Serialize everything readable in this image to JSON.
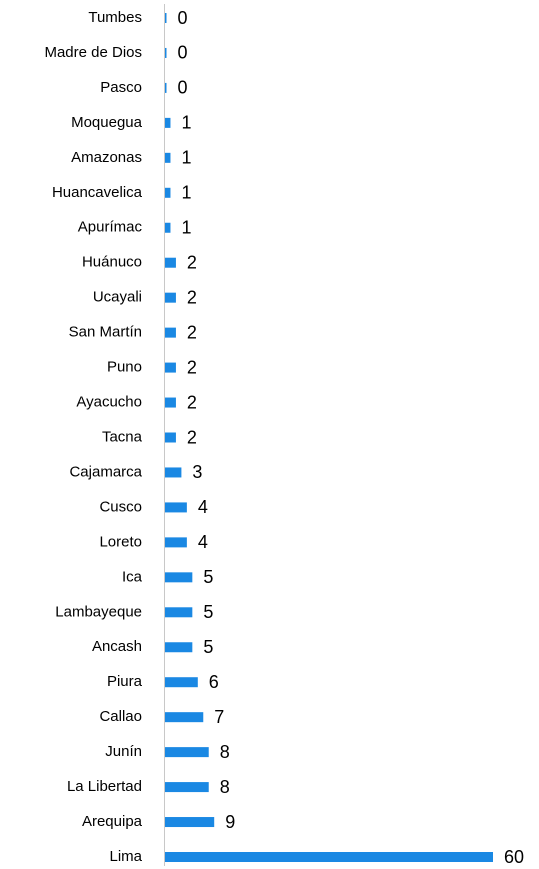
{
  "chart_data": {
    "type": "bar",
    "orientation": "horizontal",
    "categories": [
      "Tumbes",
      "Madre de Dios",
      "Pasco",
      "Moquegua",
      "Amazonas",
      "Huancavelica",
      "Apurímac",
      "Huánuco",
      "Ucayali",
      "San Martín",
      "Puno",
      "Ayacucho",
      "Tacna",
      "Cajamarca",
      "Cusco",
      "Loreto",
      "Ica",
      "Lambayeque",
      "Ancash",
      "Piura",
      "Callao",
      "Junín",
      "La Libertad",
      "Arequipa",
      "Lima"
    ],
    "values": [
      0,
      0,
      0,
      1,
      1,
      1,
      1,
      2,
      2,
      2,
      2,
      2,
      2,
      3,
      4,
      4,
      5,
      5,
      5,
      6,
      7,
      8,
      8,
      9,
      60
    ],
    "color": "#1a88e3"
  }
}
